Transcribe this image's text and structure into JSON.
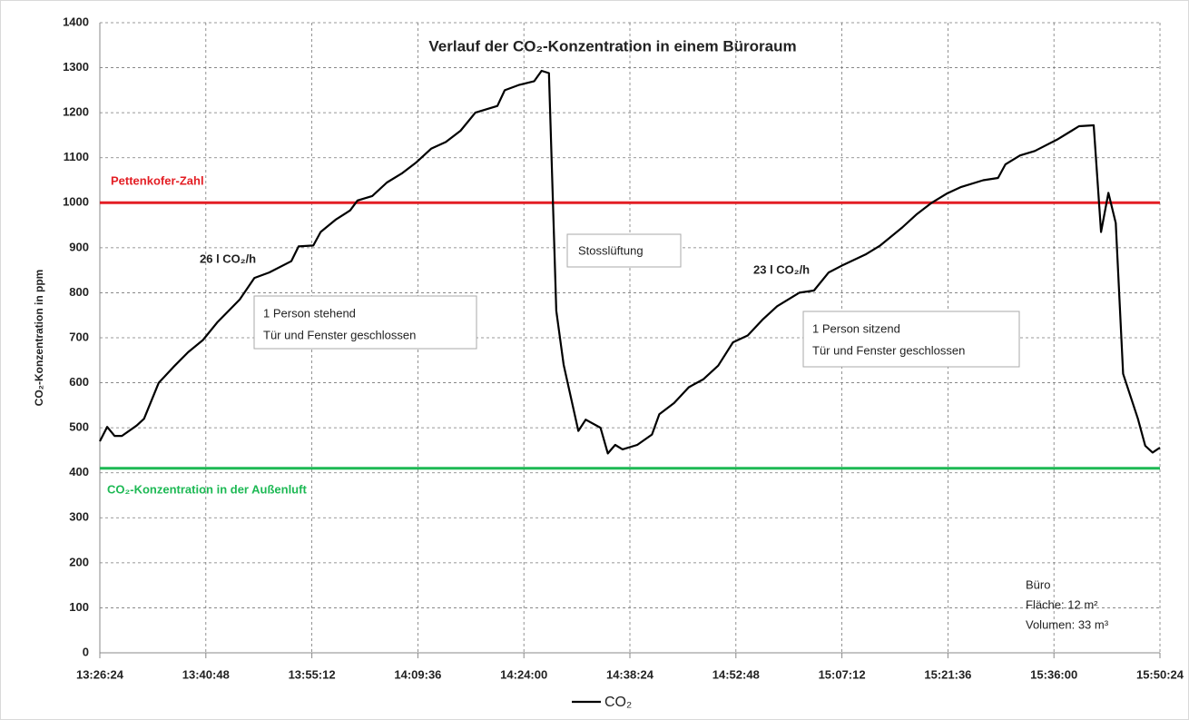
{
  "chart_data": {
    "type": "line",
    "title": "Verlauf der CO₂-Konzentration in einem Büroraum",
    "y_label": "CO₂-Konzentration in ppm",
    "x": [
      "13:26:24",
      "13:27:24",
      "13:28:24",
      "13:29:24",
      "13:31:24",
      "13:32:24",
      "13:34:24",
      "13:36:24",
      "13:38:24",
      "13:40:24",
      "13:42:24",
      "13:45:24",
      "13:47:24",
      "13:49:24",
      "13:52:24",
      "13:53:24",
      "13:55:24",
      "13:56:24",
      "13:58:24",
      "14:00:24",
      "14:01:24",
      "14:03:24",
      "14:05:24",
      "14:07:24",
      "14:09:24",
      "14:11:24",
      "14:13:24",
      "14:15:24",
      "14:17:24",
      "14:20:24",
      "14:21:24",
      "14:23:24",
      "14:25:24",
      "14:26:24",
      "14:27:24",
      "14:28:24",
      "14:29:24",
      "14:31:24",
      "14:32:24",
      "14:34:24",
      "14:35:24",
      "14:36:24",
      "14:37:24",
      "14:39:24",
      "14:41:24",
      "14:42:24",
      "14:44:24",
      "14:46:24",
      "14:48:24",
      "14:50:24",
      "14:52:24",
      "14:54:24",
      "14:56:24",
      "14:58:24",
      "15:01:24",
      "15:03:24",
      "15:05:24",
      "15:07:24",
      "15:10:24",
      "15:12:24",
      "15:15:24",
      "15:17:24",
      "15:19:24",
      "15:21:24",
      "15:23:24",
      "15:26:24",
      "15:28:24",
      "15:29:24",
      "15:31:24",
      "15:33:24",
      "15:36:24",
      "15:38:24",
      "15:39:24",
      "15:41:24",
      "15:42:24",
      "15:43:24",
      "15:44:24",
      "15:45:24",
      "15:47:24",
      "15:48:24",
      "15:49:24",
      "15:50:24"
    ],
    "series": [
      {
        "name": "CO₂",
        "color": "#000000",
        "values": [
          470,
          502,
          482,
          482,
          505,
          520,
          600,
          635,
          668,
          695,
          735,
          785,
          833,
          845,
          870,
          903,
          905,
          935,
          962,
          983,
          1005,
          1015,
          1045,
          1065,
          1090,
          1120,
          1135,
          1160,
          1200,
          1215,
          1250,
          1262,
          1270,
          1293,
          1288,
          760,
          640,
          493,
          518,
          500,
          443,
          462,
          452,
          462,
          485,
          530,
          555,
          590,
          608,
          638,
          690,
          705,
          740,
          770,
          800,
          805,
          845,
          862,
          885,
          905,
          945,
          975,
          1000,
          1020,
          1035,
          1050,
          1055,
          1085,
          1105,
          1115,
          1140,
          1160,
          1170,
          1172,
          935,
          1022,
          955,
          620,
          520,
          460,
          445,
          456
        ]
      }
    ],
    "xlim": [
      "13:26:24",
      "15:50:24"
    ],
    "xticks": [
      "13:26:24",
      "13:40:48",
      "13:55:12",
      "14:09:36",
      "14:24:00",
      "14:38:24",
      "14:52:48",
      "15:07:12",
      "15:21:36",
      "15:36:00",
      "15:50:24"
    ],
    "ylim": [
      0,
      1400
    ],
    "yticks": [
      0,
      100,
      200,
      300,
      400,
      500,
      600,
      700,
      800,
      900,
      1000,
      1100,
      1200,
      1300,
      1400
    ],
    "grid": true,
    "reference_lines": [
      {
        "label": "Pettenkofer-Zahl",
        "value": 1000,
        "color": "#e31e24"
      },
      {
        "label": "CO₂-Konzentration in der Außenluft",
        "value": 410,
        "color": "#1db954"
      }
    ],
    "annotations": [
      "26 l CO₂/h",
      "23 l CO₂/h",
      "Stosslüftung"
    ],
    "boxes": [
      [
        "1 Person stehend",
        "Tür und Fenster geschlossen"
      ],
      [
        "1 Person sitzend",
        "Tür und Fenster geschlossen"
      ],
      [
        "Büro",
        "Fläche: 12 m²",
        "Volumen: 33 m³"
      ]
    ]
  }
}
